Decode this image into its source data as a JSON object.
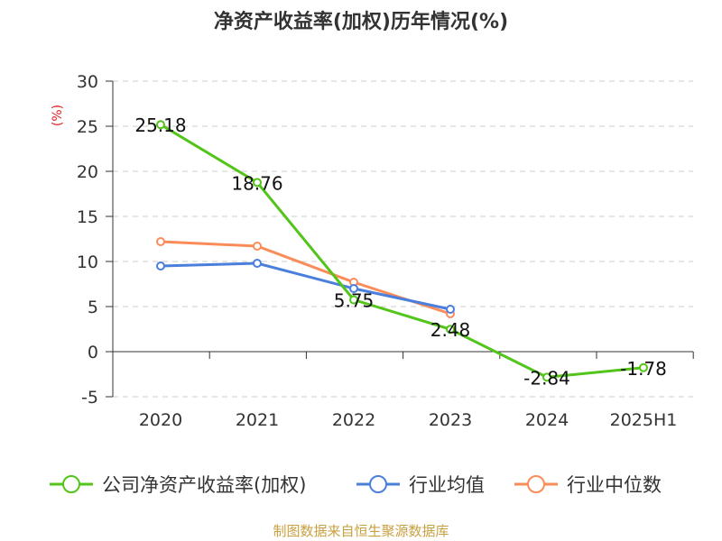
{
  "chart_data": {
    "type": "line",
    "title": "净资产收益率(加权)历年情况(%)",
    "ylabel": "(%)",
    "categories": [
      "2020",
      "2021",
      "2022",
      "2023",
      "2024",
      "2025H1"
    ],
    "ylim": [
      -5,
      30
    ],
    "yticks": [
      "30",
      "25",
      "20",
      "15",
      "10",
      "5",
      "0",
      "-5"
    ],
    "grid": true,
    "legend_position": "bottom",
    "series": [
      {
        "name": "公司净资产收益率(加权)",
        "color": "#52c41a",
        "values": [
          25.18,
          18.76,
          5.75,
          2.48,
          -2.84,
          -1.78
        ],
        "labels": [
          "25.18",
          "18.76",
          "5.75",
          "2.48",
          "-2.84",
          "-1.78"
        ]
      },
      {
        "name": "行业均值",
        "color": "#4a7fdc",
        "values": [
          9.5,
          9.8,
          7.0,
          4.7,
          null,
          null
        ]
      },
      {
        "name": "行业中位数",
        "color": "#fa8c5a",
        "values": [
          12.2,
          11.7,
          7.7,
          4.2,
          null,
          null
        ]
      }
    ]
  },
  "source": "制图数据来自恒生聚源数据库"
}
